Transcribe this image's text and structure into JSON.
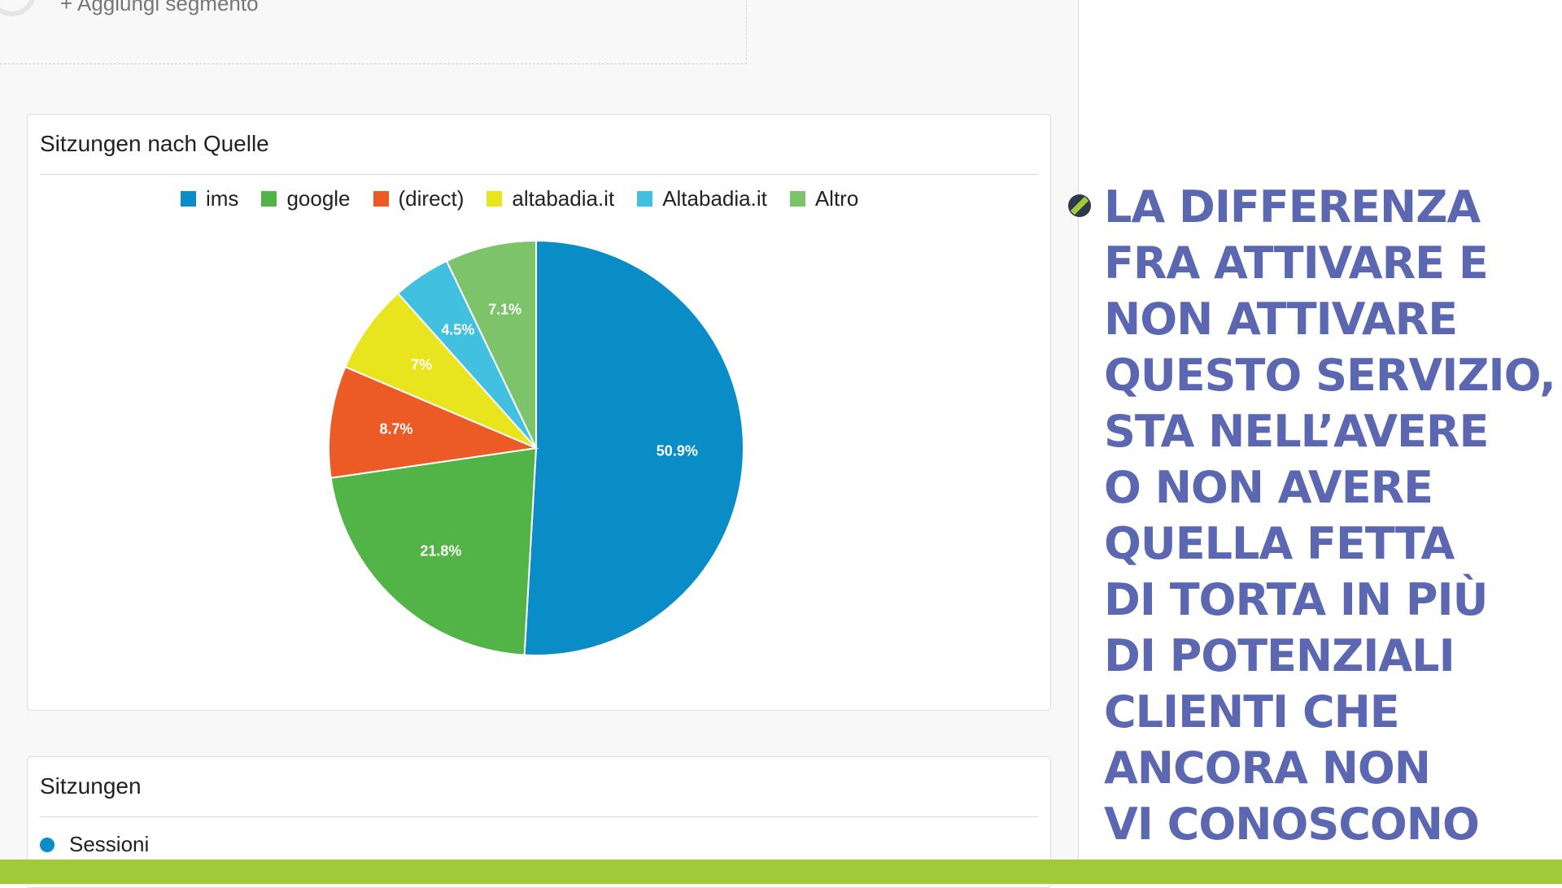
{
  "segment": {
    "label": "+ Aggiungi segmento"
  },
  "card1": {
    "title": "Sitzungen nach Quelle"
  },
  "card2": {
    "title": "Sitzungen",
    "series_label": "Sessioni",
    "series_color": "#0a8dc7"
  },
  "chart_data": {
    "type": "pie",
    "title": "Sitzungen nach Quelle",
    "legend_position": "top",
    "slices": [
      {
        "label": "ims",
        "value": 50.9,
        "display": "50.9%",
        "color": "#0a8dc7"
      },
      {
        "label": "google",
        "value": 21.8,
        "display": "21.8%",
        "color": "#52b447"
      },
      {
        "label": "(direct)",
        "value": 8.7,
        "display": "8.7%",
        "color": "#ec5a26"
      },
      {
        "label": "altabadia.it",
        "value": 7.0,
        "display": "7%",
        "color": "#e8e51f"
      },
      {
        "label": "Altabadia.it",
        "value": 4.5,
        "display": "4.5%",
        "color": "#41c1df"
      },
      {
        "label": "Altro",
        "value": 7.1,
        "display": "7.1%",
        "color": "#7cc36a"
      }
    ]
  },
  "headline": {
    "lines": [
      "LA DIFFERENZA",
      "FRA ATTIVARE E",
      "NON ATTIVARE",
      "QUESTO SERVIZIO,",
      "STA NELL’AVERE",
      "O NON AVERE",
      "QUELLA FETTA",
      "DI TORTA IN PIÙ",
      "DI POTENZIALI",
      "CLIENTI CHE",
      "ANCORA NON",
      "VI CONOSCONO"
    ],
    "color": "#5b67b0"
  },
  "footer": {
    "color": "#a3c93a"
  }
}
